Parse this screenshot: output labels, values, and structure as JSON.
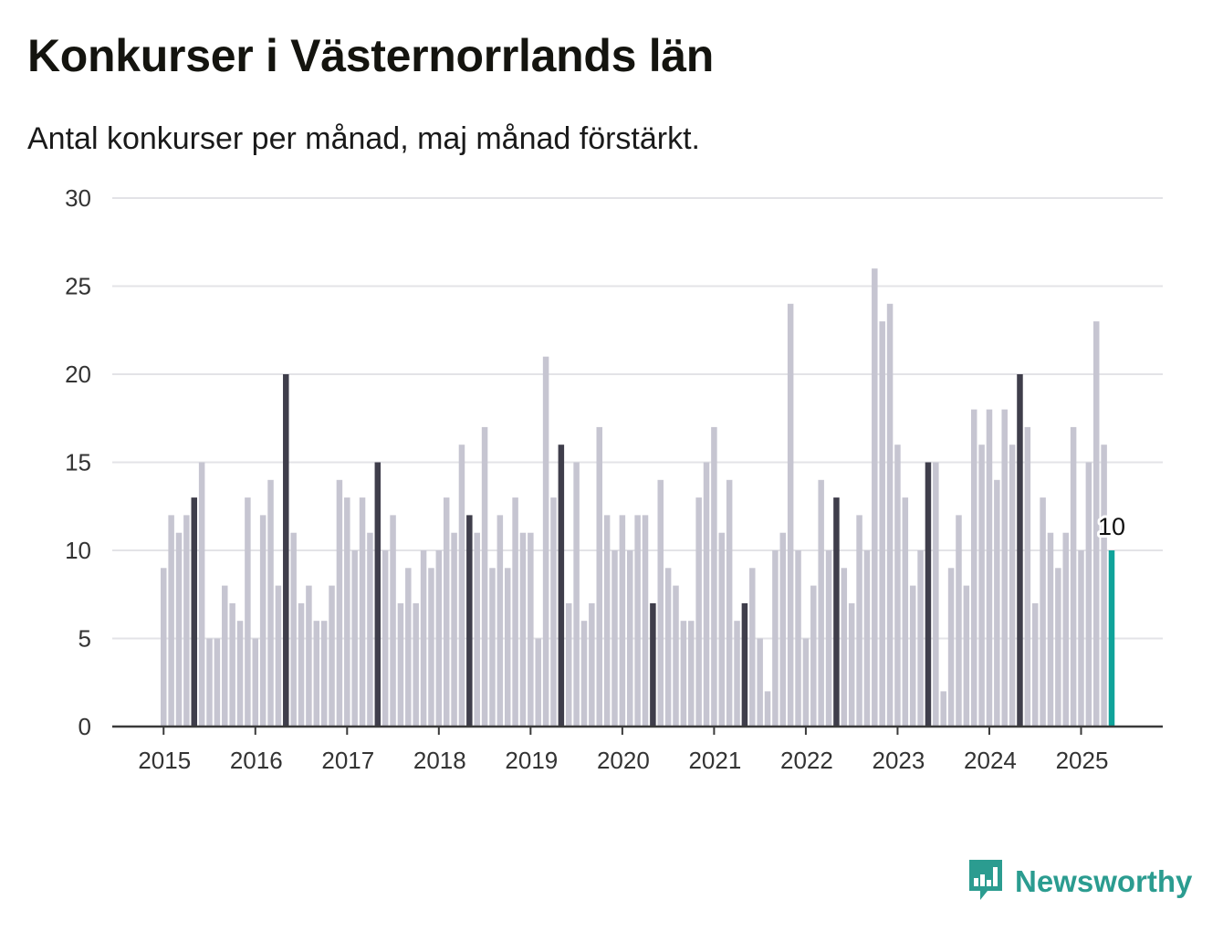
{
  "title": "Konkurser i Västernorrlands län",
  "subtitle": "Antal konkurser per månad, maj månad förstärkt.",
  "logo": {
    "text": "Newsworthy",
    "icon": "newsworthy-bar-chart-icon"
  },
  "colors": {
    "bar": "#c6c5d1",
    "bar_highlight": "#3f3e4b",
    "bar_current": "#0fa39a",
    "grid": "#e3e3e7",
    "axis": "#3a3a3a",
    "logo": "#2b9c90"
  },
  "chart_data": {
    "type": "bar",
    "title": "Konkurser i Västernorrlands län",
    "subtitle": "Antal konkurser per månad, maj månad förstärkt.",
    "xlabel": "",
    "ylabel": "",
    "ylim": [
      0,
      30
    ],
    "yticks": [
      0,
      5,
      10,
      15,
      20,
      25,
      30
    ],
    "xtick_labels": [
      "2015",
      "2016",
      "2017",
      "2018",
      "2019",
      "2020",
      "2021",
      "2022",
      "2023",
      "2024",
      "2025"
    ],
    "grid": true,
    "highlighted_month": 5,
    "start": "2015-01",
    "end": "2025-05",
    "values_by_year": {
      "2015": [
        9,
        12,
        11,
        12,
        13,
        15,
        5,
        5,
        8,
        7,
        6,
        13
      ],
      "2016": [
        5,
        12,
        14,
        8,
        20,
        11,
        7,
        8,
        6,
        6,
        8,
        14
      ],
      "2017": [
        13,
        10,
        13,
        11,
        15,
        10,
        12,
        7,
        9,
        7,
        10,
        9
      ],
      "2018": [
        10,
        13,
        11,
        16,
        12,
        11,
        17,
        9,
        12,
        9,
        13,
        11
      ],
      "2019": [
        11,
        5,
        21,
        13,
        16,
        7,
        15,
        6,
        7,
        17,
        12,
        10
      ],
      "2020": [
        12,
        10,
        12,
        12,
        7,
        14,
        9,
        8,
        6,
        6,
        13,
        15
      ],
      "2021": [
        17,
        11,
        14,
        6,
        7,
        9,
        5,
        2,
        10,
        11,
        24,
        10
      ],
      "2022": [
        5,
        8,
        14,
        10,
        13,
        9,
        7,
        12,
        10,
        26,
        23,
        24
      ],
      "2023": [
        16,
        13,
        8,
        10,
        15,
        15,
        2,
        9,
        12,
        8,
        18,
        16
      ],
      "2024": [
        18,
        14,
        18,
        16,
        20,
        17,
        7,
        13,
        11,
        9,
        11,
        17
      ],
      "2025": [
        10,
        15,
        23,
        16,
        10
      ]
    },
    "annotation": {
      "label": "10",
      "month": "2025-05",
      "value": 10
    }
  }
}
